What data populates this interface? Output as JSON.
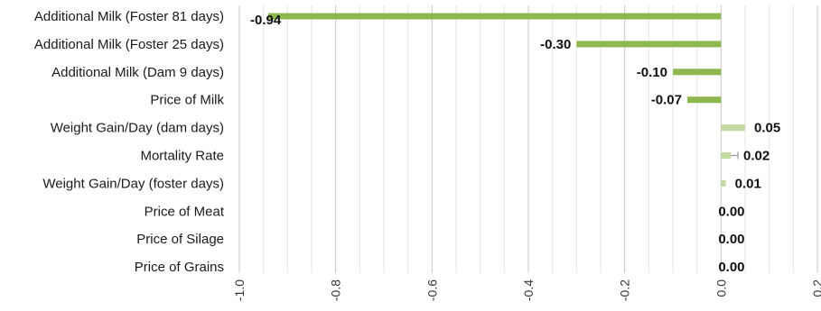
{
  "chart_data": {
    "type": "bar",
    "orientation": "horizontal",
    "categories": [
      "Additional Milk (Foster 81 days)",
      "Additional Milk (Foster 25 days)",
      "Additional Milk  (Dam 9 days)",
      "Price of Milk",
      "Weight Gain/Day (dam days)",
      "Mortality Rate",
      "Weight Gain/Day (foster days)",
      "Price of Meat",
      "Price of Silage",
      "Price of Grains"
    ],
    "values": [
      -0.94,
      -0.3,
      -0.1,
      -0.07,
      0.05,
      0.02,
      0.01,
      0.0,
      0.0,
      0.0
    ],
    "value_labels": [
      "-0.94",
      "-0.30",
      "-0.10",
      "-0.07",
      "0.05",
      "0.02",
      "0.01",
      "0.00",
      "0.00",
      "0.00"
    ],
    "xlim": [
      -1.0,
      0.2
    ],
    "xticks": [
      -1.0,
      -0.8,
      -0.6,
      -0.4,
      -0.2,
      0.0,
      0.2
    ],
    "xtick_labels": [
      "-1.0",
      "-0.8",
      "-0.6",
      "-0.4",
      "-0.2",
      "0.0",
      "0.2"
    ],
    "grid": true,
    "legend": false,
    "colors": {
      "negative": "#8cb84e",
      "positive": "#c2d9a0",
      "error_bar": "#9a9a9a",
      "grid_major": "#c8c8c8",
      "grid_minor": "#e6e6e6"
    }
  }
}
